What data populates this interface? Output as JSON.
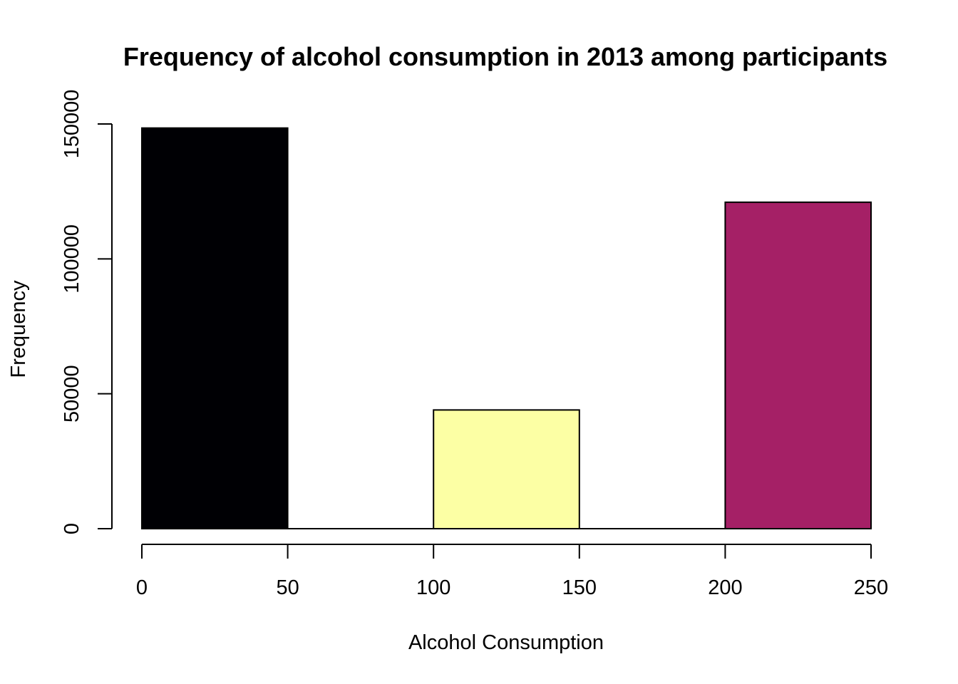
{
  "chart_data": {
    "type": "bar",
    "title": "Frequency of alcohol consumption in 2013 among participants",
    "xlabel": "Alcohol Consumption",
    "ylabel": "Frequency",
    "xlim": [
      0,
      250
    ],
    "ylim": [
      0,
      150000
    ],
    "x_ticks": [
      0,
      50,
      100,
      150,
      200,
      250
    ],
    "y_ticks": [
      0,
      50000,
      100000,
      150000
    ],
    "bins": [
      {
        "x0": 0,
        "x1": 50,
        "value": 148500,
        "color": "#000004"
      },
      {
        "x0": 50,
        "x1": 100,
        "value": 0,
        "color": "#000004"
      },
      {
        "x0": 100,
        "x1": 150,
        "value": 44000,
        "color": "#FCFFA4"
      },
      {
        "x0": 150,
        "x1": 200,
        "value": 0,
        "color": "#FCFFA4"
      },
      {
        "x0": 200,
        "x1": 250,
        "value": 121000,
        "color": "#A52066"
      }
    ],
    "grid": false,
    "legend": "none"
  }
}
